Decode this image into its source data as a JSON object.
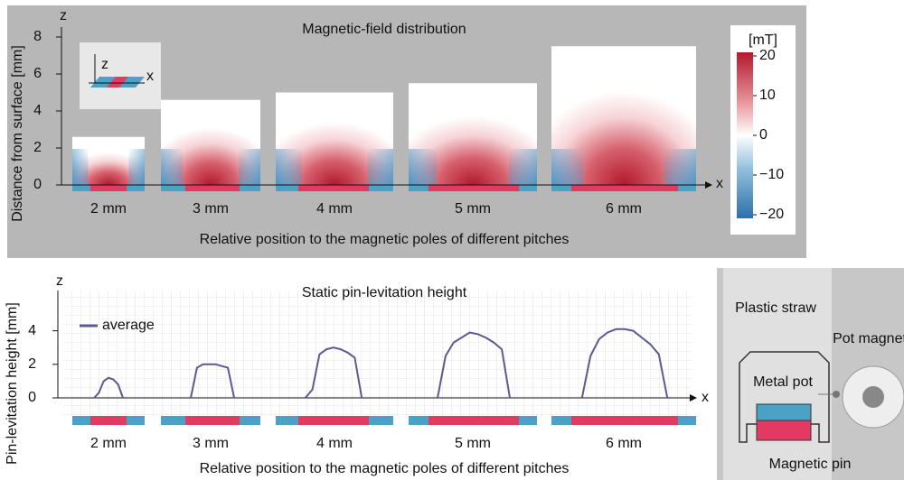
{
  "chart_data": [
    {
      "type": "heatmap-blocks",
      "title": "Magnetic-field distribution",
      "y_label": "Distance from surface [mm]",
      "x_label": "Relative position to the magnetic poles of different pitches",
      "y_axis_name": "z",
      "x_axis_name": "x",
      "inset_labels": [
        "z",
        "x"
      ],
      "categories": [
        "2 mm",
        "3 mm",
        "4 mm",
        "5 mm",
        "6 mm"
      ],
      "values": [
        2.6,
        4.6,
        5.0,
        5.5,
        7.5
      ],
      "ylim": [
        0,
        8
      ],
      "yticks": [
        0,
        2,
        4,
        6,
        8
      ],
      "colorbar": {
        "label": "[mT]",
        "lim": [
          -20,
          20
        ],
        "ticks": [
          20,
          10,
          0,
          {
            "value": -10,
            "label": "−10"
          },
          {
            "value": -20,
            "label": "−20"
          }
        ]
      }
    },
    {
      "type": "line",
      "title": "Static pin-levitation height",
      "y_label": "Pin-levitation height [mm]",
      "x_label": "Relative position to the magnetic poles of different pitches",
      "y_axis_name": "z",
      "x_axis_name": "x",
      "categories": [
        "2 mm",
        "3 mm",
        "4 mm",
        "5 mm",
        "6 mm"
      ],
      "series": [
        {
          "name": "average",
          "color": "#5b5a92",
          "values": [
            [
              0,
              0.3,
              1.0,
              1.2,
              1.1,
              0.8,
              0
            ],
            [
              0,
              1.8,
              2.0,
              2.0,
              2.0,
              1.9,
              1.8,
              0
            ],
            [
              0,
              0.5,
              2.6,
              2.9,
              3.0,
              2.9,
              2.7,
              2.4,
              0
            ],
            [
              0,
              2.5,
              3.3,
              3.6,
              3.9,
              3.8,
              3.6,
              3.3,
              2.9,
              0
            ],
            [
              0,
              2.5,
              3.5,
              3.9,
              4.1,
              4.1,
              4.0,
              3.6,
              3.2,
              2.6,
              0
            ]
          ]
        }
      ],
      "ylim": [
        0,
        6.4
      ],
      "yticks": [
        0,
        2,
        4
      ],
      "grid": true
    }
  ],
  "illustration": {
    "straw": "Plastic straw",
    "magnet": "Pot magnet",
    "pot": "Metal pot",
    "pin": "Magnetic pin"
  }
}
